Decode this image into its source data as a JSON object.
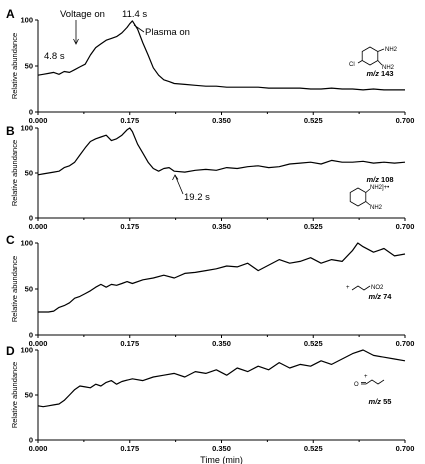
{
  "chart_data": [
    {
      "type": "line",
      "panel": "A",
      "xlim": [
        0,
        0.7
      ],
      "ylim": [
        0,
        100
      ],
      "xticks": [
        "0.000",
        "0.175",
        "0.350",
        "0.525",
        "0.700"
      ],
      "yticks": [
        "0",
        "50",
        "100"
      ],
      "ylabel": "Relative abundance",
      "xlabel": "",
      "compound_label": {
        "prefix": "m/z",
        "value": "143"
      },
      "structure": {
        "substituents": [
          "NH2",
          "NH2",
          "Cl"
        ]
      },
      "annotations": [
        {
          "text": "Voltage on",
          "x": 0.08,
          "y": 49
        },
        {
          "text": "11.4 s",
          "x": 0.19,
          "y": 97
        },
        {
          "text": "Plasma on",
          "x": 0.19,
          "y": 97
        },
        {
          "text": "4.8 s",
          "x": 0.08,
          "y": 49
        }
      ],
      "series": [
        {
          "x": [
            0.0,
            0.01,
            0.02,
            0.03,
            0.04,
            0.05,
            0.06,
            0.07,
            0.08,
            0.09,
            0.1,
            0.11,
            0.12,
            0.13,
            0.14,
            0.15,
            0.16,
            0.17,
            0.175,
            0.18,
            0.19,
            0.2,
            0.21,
            0.22,
            0.23,
            0.24,
            0.25,
            0.26,
            0.28,
            0.3,
            0.32,
            0.34,
            0.36,
            0.38,
            0.4,
            0.42,
            0.44,
            0.46,
            0.48,
            0.5,
            0.52,
            0.54,
            0.56,
            0.58,
            0.6,
            0.62,
            0.64,
            0.66,
            0.68,
            0.7
          ],
          "values": [
            40,
            41,
            42,
            43,
            41,
            44,
            43,
            46,
            49,
            52,
            62,
            70,
            74,
            78,
            80,
            82,
            86,
            92,
            96,
            99,
            90,
            75,
            62,
            48,
            40,
            35,
            33,
            31,
            30,
            29,
            28,
            28,
            27,
            27,
            27,
            27,
            26,
            26,
            26,
            26,
            25,
            25,
            26,
            25,
            25,
            24,
            25,
            24,
            24,
            24
          ]
        }
      ]
    },
    {
      "type": "line",
      "panel": "B",
      "xlim": [
        0,
        0.7
      ],
      "ylim": [
        0,
        100
      ],
      "xticks": [
        "0.000",
        "0.175",
        "0.350",
        "0.525",
        "0.700"
      ],
      "yticks": [
        "0",
        "50",
        "100"
      ],
      "ylabel": "Relative abundance",
      "xlabel": "",
      "compound_label": {
        "prefix": "m/z",
        "value": "108"
      },
      "structure": {
        "substituents": [
          "NH2]+•",
          "NH2"
        ]
      },
      "annotations": [
        {
          "text": "19.2 s",
          "x": 0.22,
          "y": 55
        }
      ],
      "series": [
        {
          "x": [
            0.0,
            0.01,
            0.02,
            0.03,
            0.04,
            0.05,
            0.06,
            0.07,
            0.08,
            0.09,
            0.1,
            0.11,
            0.12,
            0.13,
            0.14,
            0.15,
            0.16,
            0.17,
            0.175,
            0.18,
            0.19,
            0.2,
            0.21,
            0.22,
            0.23,
            0.24,
            0.25,
            0.26,
            0.28,
            0.3,
            0.32,
            0.34,
            0.36,
            0.38,
            0.4,
            0.42,
            0.44,
            0.46,
            0.48,
            0.5,
            0.52,
            0.54,
            0.56,
            0.58,
            0.6,
            0.62,
            0.64,
            0.66,
            0.68,
            0.7
          ],
          "values": [
            48,
            49,
            50,
            51,
            52,
            56,
            58,
            62,
            70,
            78,
            85,
            88,
            90,
            92,
            86,
            88,
            92,
            98,
            100,
            96,
            82,
            72,
            62,
            55,
            52,
            55,
            56,
            52,
            51,
            53,
            54,
            53,
            56,
            55,
            57,
            58,
            56,
            57,
            60,
            61,
            62,
            60,
            64,
            62,
            62,
            63,
            61,
            62,
            61,
            62
          ]
        }
      ]
    },
    {
      "type": "line",
      "panel": "C",
      "xlim": [
        0,
        0.7
      ],
      "ylim": [
        0,
        100
      ],
      "xticks": [
        "0.000",
        "0.175",
        "0.350",
        "0.525",
        "0.700"
      ],
      "yticks": [
        "0",
        "50",
        "100"
      ],
      "ylabel": "Relative abundance",
      "xlabel": "",
      "compound_label": {
        "prefix": "m/z",
        "value": "74"
      },
      "structure": {
        "substituents": [
          "NO2"
        ]
      },
      "annotations": [],
      "series": [
        {
          "x": [
            0.0,
            0.01,
            0.02,
            0.03,
            0.04,
            0.05,
            0.06,
            0.07,
            0.08,
            0.09,
            0.1,
            0.11,
            0.12,
            0.13,
            0.14,
            0.15,
            0.16,
            0.17,
            0.18,
            0.2,
            0.22,
            0.24,
            0.26,
            0.28,
            0.3,
            0.32,
            0.34,
            0.36,
            0.38,
            0.4,
            0.42,
            0.44,
            0.46,
            0.48,
            0.5,
            0.52,
            0.54,
            0.56,
            0.58,
            0.6,
            0.61,
            0.62,
            0.64,
            0.66,
            0.68,
            0.7
          ],
          "values": [
            25,
            25,
            25,
            26,
            30,
            32,
            35,
            40,
            42,
            45,
            48,
            52,
            55,
            52,
            55,
            54,
            56,
            58,
            56,
            60,
            62,
            65,
            62,
            67,
            68,
            70,
            72,
            75,
            74,
            78,
            70,
            76,
            82,
            78,
            80,
            84,
            78,
            82,
            80,
            92,
            100,
            96,
            90,
            94,
            86,
            88
          ]
        }
      ]
    },
    {
      "type": "line",
      "panel": "D",
      "xlim": [
        0,
        0.7
      ],
      "ylim": [
        0,
        100
      ],
      "xticks": [
        "0.000",
        "0.175",
        "0.350",
        "0.525",
        "0.700"
      ],
      "yticks": [
        "0",
        "50",
        "100"
      ],
      "ylabel": "Relative abundance",
      "xlabel": "Time (min)",
      "compound_label": {
        "prefix": "m/z",
        "value": "55"
      },
      "structure": {
        "substituents": [
          "O+"
        ]
      },
      "annotations": [],
      "series": [
        {
          "x": [
            0.0,
            0.01,
            0.02,
            0.03,
            0.04,
            0.05,
            0.06,
            0.07,
            0.08,
            0.09,
            0.1,
            0.11,
            0.12,
            0.13,
            0.14,
            0.15,
            0.16,
            0.18,
            0.2,
            0.22,
            0.24,
            0.26,
            0.28,
            0.3,
            0.32,
            0.34,
            0.36,
            0.38,
            0.4,
            0.42,
            0.44,
            0.46,
            0.48,
            0.5,
            0.52,
            0.54,
            0.56,
            0.58,
            0.6,
            0.62,
            0.64,
            0.66,
            0.68,
            0.7
          ],
          "values": [
            38,
            37,
            38,
            39,
            40,
            44,
            50,
            56,
            60,
            59,
            58,
            62,
            60,
            64,
            66,
            62,
            65,
            68,
            66,
            70,
            72,
            74,
            70,
            76,
            74,
            78,
            72,
            80,
            76,
            82,
            78,
            86,
            80,
            84,
            82,
            88,
            84,
            90,
            96,
            100,
            94,
            92,
            90,
            88
          ]
        }
      ]
    }
  ]
}
